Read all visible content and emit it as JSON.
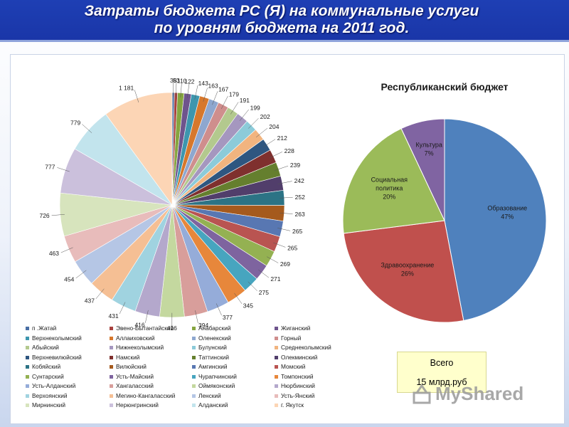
{
  "header": {
    "title_line1": "Затраты бюджета РС (Я) на коммунальные услуги",
    "title_line2": "по уровням бюджета  на 2011 год."
  },
  "total": {
    "label": "Всего",
    "value": "15 млрд.руб"
  },
  "watermark": {
    "text": "MyShared"
  },
  "chart_data": [
    {
      "type": "pie",
      "legend_position": "bottom",
      "categories": [
        "п .Жатай",
        "Эвено-Бытантайский",
        "Анабарский",
        "Жиганский",
        "Верхнеколымский",
        "Аллаиховский",
        "Оленекский",
        "Горный",
        "Абыйский",
        "Нижнеколымский",
        "Булунский",
        "Среднеколымский",
        "Верхневилюйский",
        "Намский",
        "Таттинский",
        "Олекминский",
        "Кобяйский",
        "Вилюйский",
        "Амгинский",
        "Момский",
        "Сунтарский",
        "Усть-Майский",
        "Чурапчинский",
        "Томпонский",
        "Усть-Алданский",
        "Хангаласский",
        "Оймяконский",
        "Нюрбинский",
        "Верхоянский",
        "Мегино-Кангаласский",
        "Ленский",
        "Усть-Янский",
        "Мирнинский",
        "Нерюнгринский",
        "Алданский",
        "г. Якутск"
      ],
      "label_texts": [
        "38",
        "53",
        "110",
        "122",
        "143",
        "163",
        "167",
        "179",
        "191",
        "199",
        "202",
        "204",
        "212",
        "228",
        "239",
        "242",
        "252",
        "263",
        "265",
        "265",
        "269",
        "271",
        "275",
        "345",
        "377",
        "394",
        "416",
        "416",
        "431",
        "437",
        "454",
        "463",
        "726",
        "777",
        "779",
        "1 181"
      ],
      "values": [
        38,
        53,
        110,
        122,
        143,
        163,
        167,
        179,
        191,
        199,
        202,
        204,
        212,
        228,
        239,
        242,
        252,
        263,
        265,
        265,
        269,
        271,
        275,
        345,
        377,
        394,
        416,
        416,
        431,
        437,
        454,
        463,
        726,
        777,
        779,
        1181
      ],
      "colors": [
        "#4a6fa5",
        "#a8423f",
        "#86a540",
        "#6e548d",
        "#3d96ae",
        "#d7782c",
        "#8ea7cf",
        "#cf8e8d",
        "#b3c98e",
        "#a597bf",
        "#8ccbd9",
        "#f1b47f",
        "#2e5680",
        "#7f302e",
        "#657f2e",
        "#513e6b",
        "#2c7385",
        "#a55a1d",
        "#5877b2",
        "#b95451",
        "#94b152",
        "#7e649f",
        "#47a5bf",
        "#e7873b",
        "#95acd9",
        "#d89e9b",
        "#c4d89f",
        "#b4a8cc",
        "#a0d3e0",
        "#f5bf94",
        "#b5c6e5",
        "#e8bcbb",
        "#d7e4bd",
        "#cbc0dc",
        "#c2e4ed",
        "#fcd5b5"
      ]
    },
    {
      "type": "pie",
      "title": "Республиканский бюджет",
      "categories": [
        "Образование",
        "Здравоохранение",
        "Социальная политика",
        "Культура"
      ],
      "values": [
        47,
        26,
        20,
        7
      ],
      "label_texts": [
        "47%",
        "26%",
        "20%",
        "7%"
      ],
      "colors": [
        "#4f81bd",
        "#c0504d",
        "#9bbb59",
        "#8064a2"
      ]
    }
  ]
}
